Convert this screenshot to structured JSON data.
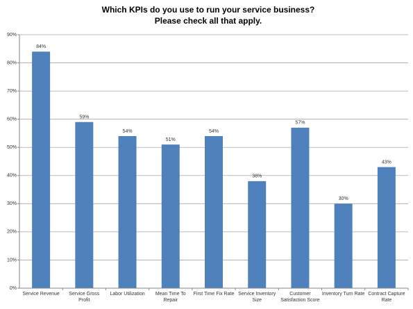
{
  "chart_data": {
    "type": "bar",
    "title": "Which KPIs do you use to run your service business?",
    "subtitle": "Please check all that apply.",
    "categories": [
      "Service Revenue",
      "Service Gross Profit",
      "Labor Utilization",
      "Mean Time To Repair",
      "First Time Fix Rate",
      "Service Inventory Size",
      "Customer Satisfaction Score",
      "Inventory Turn Rate",
      "Contract Capture Rate"
    ],
    "values": [
      84,
      59,
      54,
      51,
      54,
      38,
      57,
      30,
      43
    ],
    "value_labels": [
      "84%",
      "59%",
      "54%",
      "51%",
      "54%",
      "38%",
      "57%",
      "30%",
      "43%"
    ],
    "color": "#4f81bd",
    "ylim": [
      0,
      90
    ],
    "yticks": [
      {
        "value": 0,
        "label": "0%"
      },
      {
        "value": 10,
        "label": "10%"
      },
      {
        "value": 20,
        "label": "20%"
      },
      {
        "value": 30,
        "label": "30%"
      },
      {
        "value": 40,
        "label": "40%"
      },
      {
        "value": 50,
        "label": "50%"
      },
      {
        "value": 60,
        "label": "60%"
      },
      {
        "value": 70,
        "label": "70%"
      },
      {
        "value": 80,
        "label": "80%"
      },
      {
        "value": 90,
        "label": "90%"
      }
    ],
    "grid": true
  }
}
